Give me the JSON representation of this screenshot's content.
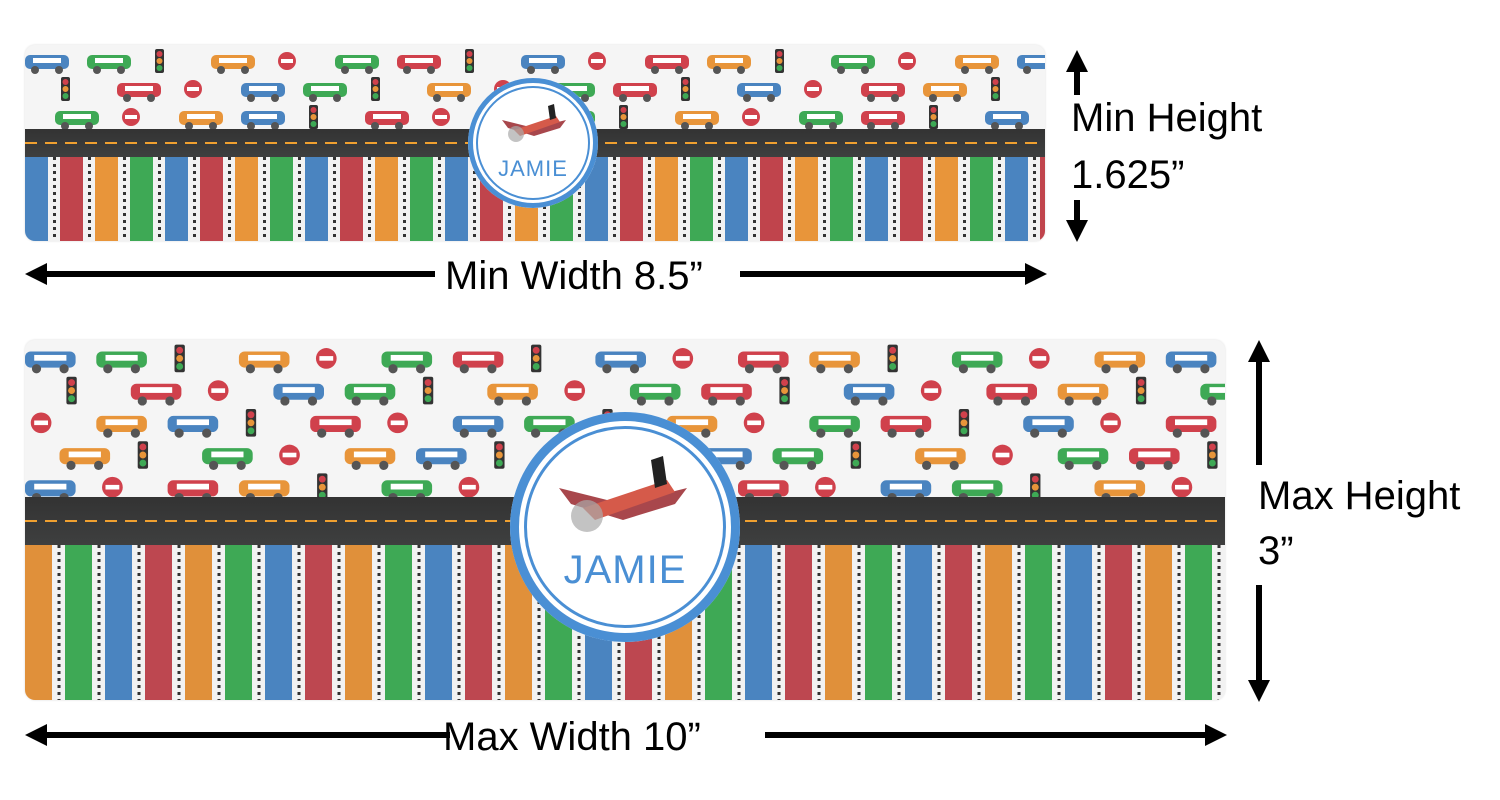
{
  "banners": [
    {
      "id": "min",
      "name_text": "JAMIE",
      "stripe_order": [
        "#4a84c0",
        "#c0444c",
        "#e8953a",
        "#3ea955"
      ]
    },
    {
      "id": "max",
      "name_text": "JAMIE",
      "stripe_order": [
        "#e0903a",
        "#3ea955",
        "#4a84c0",
        "#bd4750"
      ]
    }
  ],
  "dimensions": {
    "min_width": "Min Width 8.5”",
    "min_height_line1": "Min Height",
    "min_height_line2": "1.625”",
    "max_width": "Max Width 10”",
    "max_height_line1": "Max Height",
    "max_height_line2": "3”"
  },
  "colors": {
    "accent_blue": "#4a8fd4",
    "road": "#383939",
    "road_dash": "#f0a030"
  }
}
